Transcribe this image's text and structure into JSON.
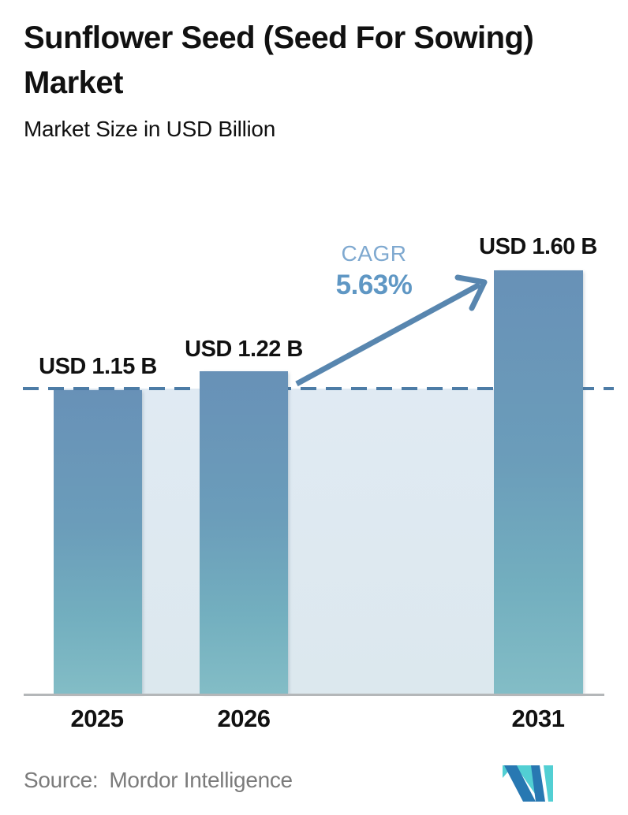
{
  "header": {
    "title_line1": "Sunflower Seed (Seed For Sowing)",
    "title_line2": "Market",
    "subtitle": "Market Size in USD Billion"
  },
  "chart_data": {
    "type": "bar",
    "title": "Sunflower Seed (Seed For Sowing) Market",
    "subtitle": "Market Size in USD Billion",
    "unit": "USD Billion",
    "categories": [
      "2025",
      "2026",
      "2031"
    ],
    "values": [
      1.15,
      1.22,
      1.6
    ],
    "bars": [
      {
        "year": "2025",
        "value": 1.15,
        "value_label": "USD 1.15 B"
      },
      {
        "year": "2026",
        "value": 1.22,
        "value_label": "USD 1.22 B"
      },
      {
        "year": "2031",
        "value": 1.6,
        "value_label": "USD 1.60 B"
      }
    ],
    "cagr": {
      "label": "CAGR",
      "value": "5.63%"
    },
    "reference_line": {
      "value": 1.15,
      "style": "dashed"
    },
    "ylim": [
      0,
      1.78
    ],
    "grid": false,
    "legend": false,
    "colors": {
      "bar_gradient_top": "#6891b7",
      "bar_gradient_bottom": "#83bdc6",
      "band_fill": "#dde8f0",
      "dashed_line": "#4d7ca6",
      "arrow": "#5886af",
      "cagr_label": "#7fa9d0",
      "cagr_value": "#5f97c4",
      "axis_line": "#b4b7b9",
      "text": "#111111",
      "source_text": "#7b7b7b",
      "logo_blue": "#2878b2",
      "logo_teal": "#52cfd3"
    }
  },
  "footer": {
    "source_label": "Source:",
    "source_name": "Mordor Intelligence"
  }
}
